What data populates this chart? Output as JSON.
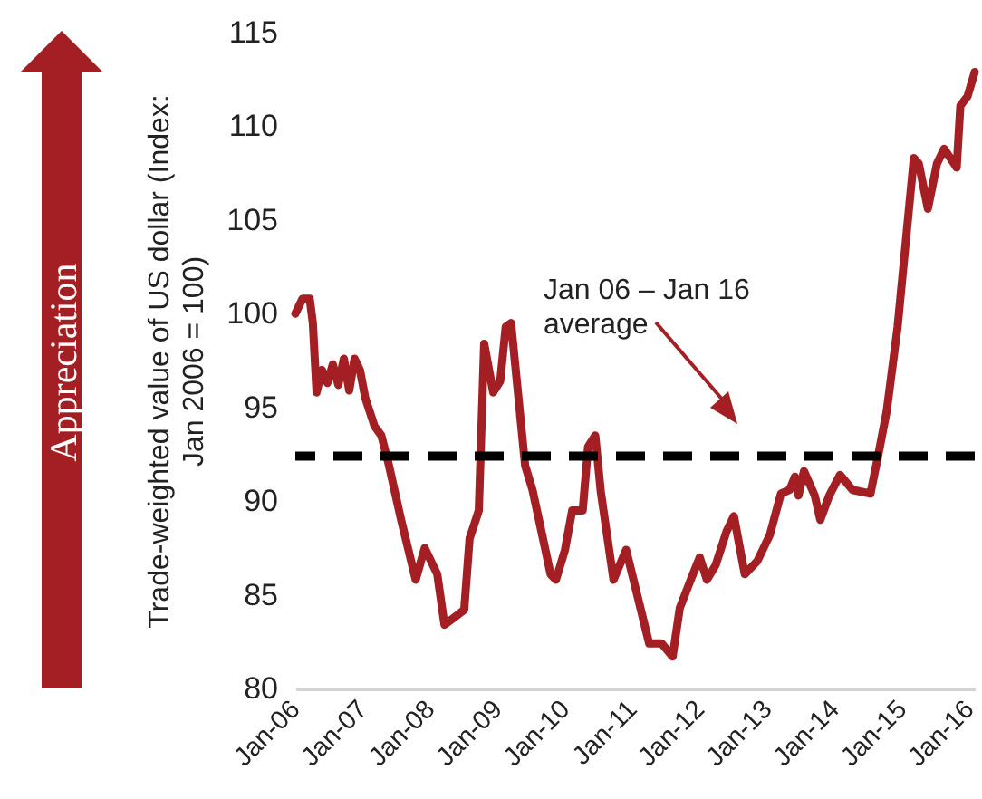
{
  "chart_data": {
    "type": "line",
    "ylabel": "Trade-weighted value of US dollar (Index:\nJan 2006 = 100)",
    "x": [
      "2005-12-12",
      "2006-01-20",
      "2006-02-28",
      "2006-03-17",
      "2006-04-06",
      "2006-05-05",
      "2006-06-04",
      "2006-07-03",
      "2006-08-02",
      "2006-09-01",
      "2006-09-30",
      "2006-10-29",
      "2006-11-27",
      "2006-12-26",
      "2007-02-14",
      "2007-03-23",
      "2007-05-01",
      "2007-07-08",
      "2007-09-25",
      "2007-11-13",
      "2008-01-20",
      "2008-02-28",
      "2008-05-06",
      "2008-06-14",
      "2008-07-13",
      "2008-09-01",
      "2008-09-30",
      "2008-11-18",
      "2008-12-26",
      "2009-01-25",
      "2009-02-23",
      "2009-05-10",
      "2009-06-19",
      "2009-09-25",
      "2009-10-24",
      "2009-12-12",
      "2010-01-20",
      "2010-03-18",
      "2010-04-16",
      "2010-05-25",
      "2010-06-24",
      "2010-09-01",
      "2010-11-08",
      "2011-03-13",
      "2011-05-20",
      "2011-07-18",
      "2011-08-26",
      "2011-10-24",
      "2011-12-12",
      "2012-01-20",
      "2012-03-08",
      "2012-05-06",
      "2012-06-14",
      "2012-08-12",
      "2012-10-19",
      "2012-12-26",
      "2013-02-24",
      "2013-04-12",
      "2013-05-11",
      "2013-05-30",
      "2013-06-29",
      "2013-08-26",
      "2013-09-25",
      "2013-11-13",
      "2014-01-10",
      "2014-03-18",
      "2014-06-24",
      "2014-08-02",
      "2014-09-20",
      "2014-11-18",
      "2014-12-26",
      "2015-02-14",
      "2015-03-13",
      "2015-05-01",
      "2015-06-19",
      "2015-07-28",
      "2015-10-04",
      "2015-10-24",
      "2015-12-02",
      "2016-01-10"
    ],
    "series": [
      {
        "color": "#a31f24",
        "values": [
          100,
          100.8,
          100.8,
          99.5,
          95.8,
          97.0,
          96.3,
          97.3,
          96.2,
          97.6,
          95.9,
          97.6,
          97.0,
          95.5,
          94.0,
          93.5,
          92.0,
          89.0,
          85.8,
          87.5,
          86.1,
          83.4,
          83.9,
          84.2,
          88.0,
          89.5,
          98.4,
          95.8,
          96.4,
          99.3,
          99.5,
          91.9,
          90.6,
          86.1,
          85.8,
          87.4,
          89.5,
          89.5,
          92.9,
          93.5,
          90.5,
          85.8,
          87.4,
          82.4,
          82.4,
          81.7,
          84.3,
          85.8,
          87.0,
          85.8,
          86.6,
          88.4,
          89.2,
          86.1,
          86.8,
          88.2,
          90.4,
          90.6,
          91.3,
          90.3,
          91.6,
          90.3,
          89.0,
          90.3,
          91.4,
          90.6,
          90.4,
          92.3,
          94.8,
          99.3,
          103.2,
          108.3,
          108.0,
          105.6,
          108.0,
          108.8,
          107.8,
          111.1,
          111.6,
          112.9
        ]
      }
    ],
    "xlim": [
      "2005-12-12",
      "2016-01-10"
    ],
    "xticks": [
      {
        "value": "2006-01",
        "label": "Jan-06"
      },
      {
        "value": "2007-01",
        "label": "Jan-07"
      },
      {
        "value": "2008-01",
        "label": "Jan-08"
      },
      {
        "value": "2009-01",
        "label": "Jan-09"
      },
      {
        "value": "2010-01",
        "label": "Jan-10"
      },
      {
        "value": "2011-01",
        "label": "Jan-11"
      },
      {
        "value": "2012-01",
        "label": "Jan-12"
      },
      {
        "value": "2013-01",
        "label": "Jan-13"
      },
      {
        "value": "2014-01",
        "label": "Jan-14"
      },
      {
        "value": "2015-01",
        "label": "Jan-15"
      },
      {
        "value": "2016-01",
        "label": "Jan-16"
      }
    ],
    "ylim": [
      80,
      115
    ],
    "yticks": [
      80,
      85,
      90,
      95,
      100,
      105,
      110,
      115
    ],
    "ref_lines": [
      {
        "axis": "y",
        "value": 92.4,
        "label": "Jan 06 – Jan 16\naverage",
        "color": "#000000",
        "line_style": "dashed"
      }
    ],
    "annotations": [
      "Appreciation"
    ],
    "grid": false,
    "marker": "none",
    "line_style": "solid"
  }
}
